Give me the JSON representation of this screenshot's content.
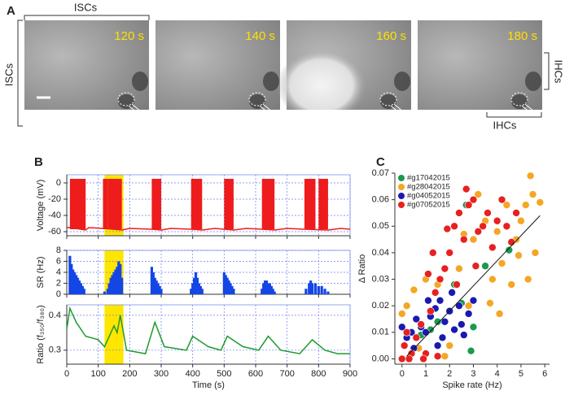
{
  "panel_labels": [
    "A",
    "B",
    "C"
  ],
  "panel_a": {
    "images": [
      "120 s",
      "140 s",
      "160 s",
      "180 s"
    ],
    "top_label": "ISCs",
    "left_label": "ISCs",
    "right_label": "IHCs",
    "bottom_label": "IHCs"
  },
  "chart_data": [
    {
      "type": "line",
      "ylabel": "Voltage (mV)",
      "color": "#ee1c1c",
      "x": [
        0,
        10,
        60,
        70,
        115,
        175,
        200,
        270,
        300,
        330,
        395,
        430,
        470,
        500,
        530,
        570,
        620,
        660,
        700,
        755,
        830,
        870,
        900
      ],
      "values": [
        -55,
        -55,
        -58,
        -55,
        -56,
        -58,
        -56,
        -57,
        -58,
        -56,
        -57,
        -58,
        -56,
        -57,
        -58,
        -56,
        -57,
        -58,
        -56,
        -57,
        -58,
        -56,
        -57
      ],
      "bursts": [
        [
          10,
          60
        ],
        [
          115,
          130
        ],
        [
          130,
          175
        ],
        [
          270,
          300
        ],
        [
          395,
          430
        ],
        [
          500,
          530
        ],
        [
          620,
          660
        ],
        [
          755,
          790
        ],
        [
          800,
          830
        ]
      ],
      "burst_range": [
        -57,
        5
      ],
      "highlight": [
        120,
        180
      ],
      "highlight_color": "#ffe600",
      "xlim": [
        0,
        900
      ],
      "xticks": [
        0,
        100,
        200,
        300,
        400,
        500,
        600,
        700,
        800,
        900
      ],
      "ylim": [
        -65,
        10
      ],
      "yticks": [
        -60,
        -40,
        -20,
        0
      ],
      "grid": true,
      "show_x_tick_labels": false
    },
    {
      "type": "bar",
      "ylabel": "SR (Hz)",
      "color": "#1446e6",
      "x": [
        10,
        15,
        20,
        25,
        30,
        35,
        40,
        45,
        50,
        55,
        120,
        130,
        135,
        140,
        145,
        150,
        155,
        160,
        165,
        170,
        175,
        270,
        275,
        280,
        285,
        290,
        295,
        300,
        395,
        400,
        405,
        410,
        415,
        420,
        425,
        430,
        500,
        505,
        510,
        515,
        520,
        525,
        530,
        620,
        625,
        630,
        635,
        640,
        645,
        650,
        655,
        660,
        760,
        770,
        775,
        780,
        790,
        800,
        810,
        820,
        830
      ],
      "values": [
        7,
        5.5,
        4.5,
        4,
        3.5,
        3,
        2.5,
        2,
        1.5,
        1,
        0.5,
        1,
        2,
        3,
        3.5,
        4,
        4.5,
        5,
        6,
        5.5,
        3,
        5,
        4,
        3,
        2.5,
        2,
        1.5,
        1,
        1,
        2,
        3,
        4,
        3,
        2,
        1.5,
        1,
        4,
        3.5,
        3,
        2.5,
        2,
        1.5,
        1,
        1,
        2,
        2.5,
        2.5,
        2,
        2,
        1.5,
        1,
        0.5,
        1,
        2,
        2.5,
        2,
        2,
        1.5,
        1.5,
        1,
        0.5
      ],
      "highlight": [
        120,
        180
      ],
      "highlight_color": "#ffe600",
      "xlim": [
        0,
        900
      ],
      "xticks": [
        0,
        100,
        200,
        300,
        400,
        500,
        600,
        700,
        800,
        900
      ],
      "ylim": [
        0,
        8
      ],
      "yticks": [
        0,
        2,
        4,
        6,
        8
      ],
      "grid": true,
      "show_x_tick_labels": false
    },
    {
      "type": "line",
      "ylabel": "Ratio (f₃₅₀/f₃₈₀)",
      "xlabel": "Time (s)",
      "color": "#1e9a2e",
      "x": [
        0,
        10,
        30,
        60,
        100,
        120,
        150,
        160,
        170,
        190,
        250,
        280,
        310,
        380,
        400,
        450,
        490,
        510,
        560,
        610,
        640,
        680,
        740,
        780,
        820,
        860,
        900
      ],
      "values": [
        0.36,
        0.42,
        0.38,
        0.34,
        0.33,
        0.31,
        0.37,
        0.35,
        0.4,
        0.3,
        0.29,
        0.38,
        0.31,
        0.3,
        0.34,
        0.31,
        0.3,
        0.34,
        0.31,
        0.3,
        0.34,
        0.3,
        0.29,
        0.33,
        0.3,
        0.29,
        0.29
      ],
      "highlight": [
        120,
        180
      ],
      "highlight_color": "#ffe600",
      "xlim": [
        0,
        900
      ],
      "xticks": [
        0,
        100,
        200,
        300,
        400,
        500,
        600,
        700,
        800,
        900
      ],
      "ylim": [
        0.26,
        0.43
      ],
      "yticks": [
        0.3,
        0.4
      ],
      "grid": true,
      "show_x_tick_labels": true
    },
    {
      "type": "scatter",
      "xlabel": "Spike rate (Hz)",
      "ylabel": "Δ Ratio",
      "series": [
        {
          "name": "#g17042015",
          "color": "#1a9a50",
          "x": [
            1.2,
            1.5,
            2.2,
            2.5,
            2.7,
            3.0,
            3.5,
            4.5,
            2.9,
            0.8
          ],
          "values": [
            0.011,
            0.014,
            0.028,
            0.021,
            0.058,
            0.012,
            0.035,
            0.041,
            0.003,
            0.009
          ]
        },
        {
          "name": "#g28042015",
          "color": "#f5a623",
          "x": [
            0,
            0.2,
            0.5,
            1,
            1.5,
            2,
            2.4,
            2.8,
            3,
            3.2,
            3.5,
            3.8,
            4,
            4.2,
            4.4,
            4.6,
            4.8,
            5,
            5.2,
            5.4,
            5.5,
            5.6,
            5.8,
            4.1,
            3.7,
            5.3,
            4.9,
            2.6,
            1.8,
            0.7
          ],
          "values": [
            0.017,
            0.02,
            0.026,
            0.03,
            0.028,
            0.005,
            0.034,
            0.02,
            0.045,
            0.062,
            0.052,
            0.03,
            0.048,
            0.036,
            0.058,
            0.028,
            0.045,
            0.052,
            0.058,
            0.069,
            0.062,
            0.04,
            0.059,
            0.017,
            0.021,
            0.03,
            0.039,
            0.047,
            0.001,
            0.004
          ]
        },
        {
          "name": "#g04052015",
          "color": "#1a1ab0",
          "x": [
            0,
            0.2,
            0.4,
            0.6,
            0.8,
            1,
            1.2,
            1.4,
            1.6,
            1.8,
            2,
            2.2,
            2.4,
            2.6,
            2.8,
            3,
            1.1,
            1.7,
            2.1,
            0.5,
            1.5,
            2.5
          ],
          "values": [
            0.012,
            0.008,
            0.01,
            0.015,
            0.012,
            0.01,
            0.016,
            0.019,
            0.022,
            0.014,
            0.018,
            0.011,
            0.02,
            0.009,
            0.017,
            0.022,
            0.022,
            0.008,
            0.025,
            0.004,
            0.005,
            0.013
          ]
        },
        {
          "name": "#g07052015",
          "color": "#e82020",
          "x": [
            0,
            0.1,
            0.2,
            0.4,
            0.6,
            0.8,
            1,
            1.2,
            1.4,
            1.6,
            1.8,
            2,
            2.2,
            2.4,
            2.6,
            2.8,
            3,
            3.2,
            3.4,
            3.6,
            3.8,
            4,
            4.2,
            4.4,
            4.6,
            1.3,
            1.9,
            2.3,
            0.3,
            0.9,
            1.5,
            3.1,
            2.7,
            4.8,
            1.1
          ],
          "values": [
            0,
            0.005,
            0.01,
            0.002,
            0.008,
            0.013,
            0.002,
            0.018,
            0.025,
            0.03,
            0.034,
            0.04,
            0.05,
            0.055,
            0.045,
            0.058,
            0.06,
            0.048,
            0.05,
            0.055,
            0.042,
            0.052,
            0.06,
            0.05,
            0.044,
            0.04,
            0.049,
            0.028,
            0,
            0,
            0.001,
            0.035,
            0.064,
            0.055,
            0.032
          ]
        }
      ],
      "fit": {
        "x": [
          0.2,
          5.8
        ],
        "values": [
          0.001,
          0.054
        ]
      },
      "xlim": [
        -0.3,
        6.2
      ],
      "xticks": [
        0,
        1,
        2,
        3,
        4,
        5,
        6
      ],
      "ylim": [
        -0.002,
        0.07
      ],
      "yticks": [
        {
          "value": 0,
          "label": "0.00"
        },
        {
          "value": 0.01,
          "label": "0.01"
        },
        {
          "value": 0.02,
          "label": "0.02"
        },
        {
          "value": 0.03,
          "label": "0.03"
        },
        {
          "value": 0.04,
          "label": "0.04"
        },
        {
          "value": 0.05,
          "label": "0.05"
        },
        {
          "value": 0.06,
          "label": "0.06"
        },
        {
          "value": 0.07,
          "label": "0.07"
        }
      ],
      "grid": false,
      "show_x_tick_labels": true,
      "legend": "upper left"
    }
  ]
}
